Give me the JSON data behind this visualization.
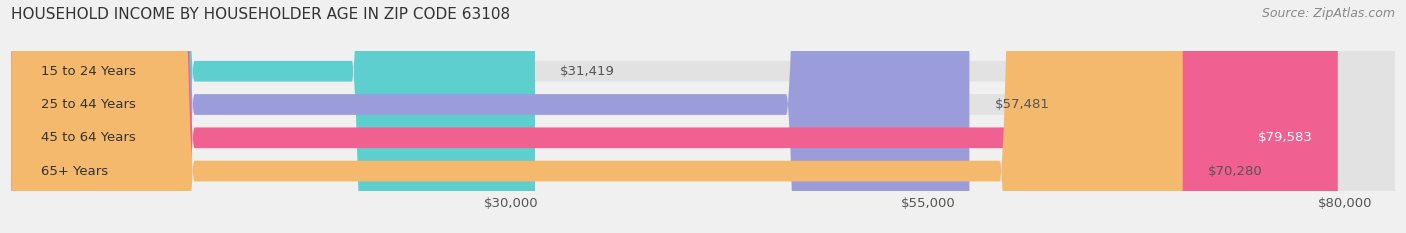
{
  "title": "HOUSEHOLD INCOME BY HOUSEHOLDER AGE IN ZIP CODE 63108",
  "source": "Source: ZipAtlas.com",
  "categories": [
    "15 to 24 Years",
    "25 to 44 Years",
    "45 to 64 Years",
    "65+ Years"
  ],
  "values": [
    31419,
    57481,
    79583,
    70280
  ],
  "bar_colors": [
    "#5ecfcf",
    "#9b9cda",
    "#f06090",
    "#f5b96e"
  ],
  "bg_color": "#f0f0f0",
  "bar_bg_color": "#e2e2e2",
  "value_labels": [
    "$31,419",
    "$57,481",
    "$79,583",
    "$70,280"
  ],
  "value_label_white": [
    false,
    false,
    true,
    false
  ],
  "xtick_labels": [
    "$30,000",
    "$55,000",
    "$80,000"
  ],
  "xtick_values": [
    30000,
    55000,
    80000
  ],
  "xmin": 0,
  "xmax": 83000,
  "bar_height": 0.62,
  "label_fontsize": 9.5,
  "title_fontsize": 11,
  "source_fontsize": 9
}
